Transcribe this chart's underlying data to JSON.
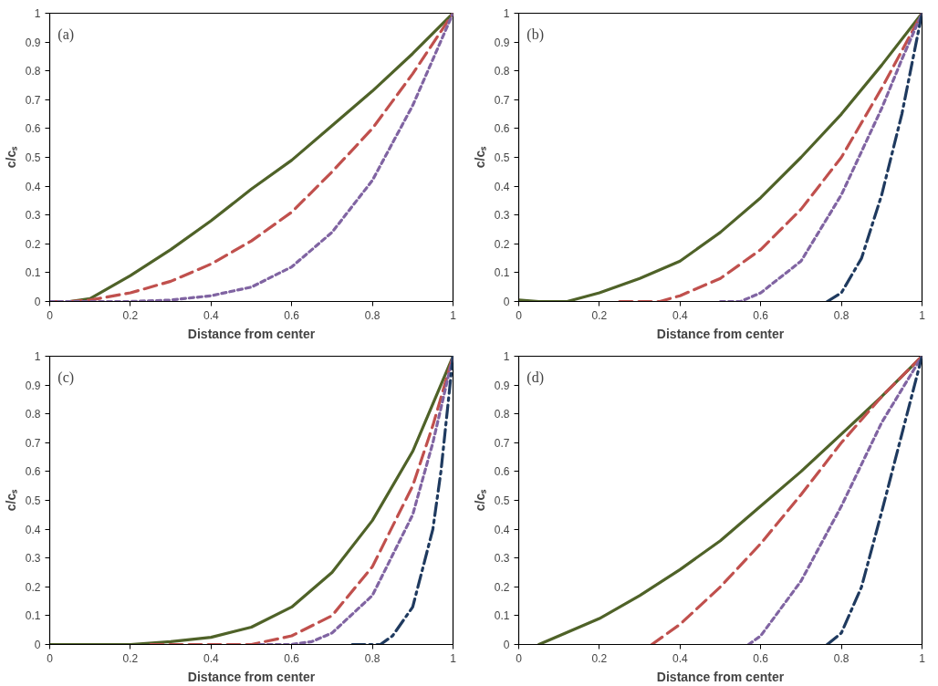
{
  "chart_data": [
    {
      "type": "line",
      "xlabel": "Distance from center",
      "ylabel": "c/cₛ",
      "annotations": [
        "(a)"
      ],
      "xlim": [
        0,
        1
      ],
      "ylim": [
        0,
        1
      ],
      "xticks": [
        0,
        0.2,
        0.4,
        0.6,
        0.8,
        1
      ],
      "yticks": [
        0,
        0.1,
        0.2,
        0.3,
        0.4,
        0.5,
        0.6,
        0.7,
        0.8,
        0.9,
        1
      ],
      "grid": false,
      "series": [
        {
          "color": "#4f6228",
          "line_style": "solid",
          "x": [
            0.05,
            0.1,
            0.2,
            0.3,
            0.4,
            0.5,
            0.6,
            0.7,
            0.8,
            0.9,
            1
          ],
          "values": [
            0,
            0.01,
            0.09,
            0.18,
            0.28,
            0.39,
            0.49,
            0.61,
            0.73,
            0.86,
            1
          ]
        },
        {
          "color": "#c0504d",
          "line_style": "dashed",
          "x": [
            0,
            0.05,
            0.1,
            0.2,
            0.3,
            0.4,
            0.5,
            0.6,
            0.7,
            0.8,
            0.9,
            1
          ],
          "values": [
            0,
            0,
            0.005,
            0.03,
            0.07,
            0.13,
            0.21,
            0.31,
            0.45,
            0.6,
            0.79,
            1
          ]
        },
        {
          "color": "#8064a2",
          "line_style": "dotted",
          "x": [
            0,
            0.1,
            0.2,
            0.3,
            0.4,
            0.5,
            0.6,
            0.7,
            0.8,
            0.9,
            0.95,
            1
          ],
          "values": [
            0,
            0,
            0,
            0.005,
            0.02,
            0.05,
            0.12,
            0.24,
            0.42,
            0.68,
            0.84,
            1
          ]
        }
      ]
    },
    {
      "type": "line",
      "xlabel": "Distance from center",
      "ylabel": "c/cₛ",
      "annotations": [
        "(b)"
      ],
      "xlim": [
        0,
        1
      ],
      "ylim": [
        0,
        1
      ],
      "xticks": [
        0,
        0.2,
        0.4,
        0.6,
        0.8,
        1
      ],
      "yticks": [
        0,
        0.1,
        0.2,
        0.3,
        0.4,
        0.5,
        0.6,
        0.7,
        0.8,
        0.9,
        1
      ],
      "grid": false,
      "series": [
        {
          "color": "#4f6228",
          "line_style": "solid",
          "x": [
            0,
            0.05,
            0.12,
            0.2,
            0.3,
            0.4,
            0.5,
            0.6,
            0.7,
            0.8,
            0.9,
            1
          ],
          "values": [
            0.005,
            0,
            0,
            0.03,
            0.08,
            0.14,
            0.24,
            0.36,
            0.5,
            0.65,
            0.82,
            1
          ]
        },
        {
          "color": "#c0504d",
          "line_style": "dashed",
          "x": [
            0.25,
            0.35,
            0.4,
            0.5,
            0.6,
            0.7,
            0.8,
            0.9,
            1
          ],
          "values": [
            0,
            0,
            0.02,
            0.08,
            0.18,
            0.32,
            0.5,
            0.74,
            1
          ]
        },
        {
          "color": "#8064a2",
          "line_style": "dotted",
          "x": [
            0.5,
            0.55,
            0.6,
            0.7,
            0.8,
            0.9,
            0.95,
            1
          ],
          "values": [
            0,
            0,
            0.03,
            0.14,
            0.37,
            0.67,
            0.84,
            1
          ]
        },
        {
          "color": "#1f3a5f",
          "line_style": "dashdot",
          "x": [
            0.765,
            0.8,
            0.85,
            0.9,
            0.95,
            1
          ],
          "values": [
            0,
            0.03,
            0.15,
            0.37,
            0.65,
            1
          ]
        }
      ]
    },
    {
      "type": "line",
      "xlabel": "Distance from center",
      "ylabel": "c/cₛ",
      "annotations": [
        "(c)"
      ],
      "xlim": [
        0,
        1
      ],
      "ylim": [
        0,
        1
      ],
      "xticks": [
        0,
        0.2,
        0.4,
        0.6,
        0.8,
        1
      ],
      "yticks": [
        0,
        0.1,
        0.2,
        0.3,
        0.4,
        0.5,
        0.6,
        0.7,
        0.8,
        0.9,
        1
      ],
      "grid": false,
      "series": [
        {
          "color": "#4f6228",
          "line_style": "solid",
          "x": [
            0,
            0.1,
            0.2,
            0.3,
            0.4,
            0.5,
            0.6,
            0.7,
            0.8,
            0.9,
            1
          ],
          "values": [
            0,
            0,
            0,
            0.01,
            0.025,
            0.06,
            0.13,
            0.25,
            0.43,
            0.67,
            1
          ]
        },
        {
          "color": "#c0504d",
          "line_style": "dashed",
          "x": [
            0.25,
            0.4,
            0.5,
            0.6,
            0.7,
            0.8,
            0.9,
            0.95,
            1
          ],
          "values": [
            0,
            0,
            0,
            0.03,
            0.1,
            0.27,
            0.55,
            0.76,
            1
          ]
        },
        {
          "color": "#8064a2",
          "line_style": "dotted",
          "x": [
            0.52,
            0.6,
            0.65,
            0.7,
            0.8,
            0.9,
            0.95,
            1
          ],
          "values": [
            0,
            0,
            0.01,
            0.04,
            0.17,
            0.45,
            0.7,
            1
          ]
        },
        {
          "color": "#1f3a5f",
          "line_style": "dashdot",
          "x": [
            0.75,
            0.82,
            0.85,
            0.9,
            0.95,
            0.97,
            1
          ],
          "values": [
            0,
            0,
            0.03,
            0.13,
            0.4,
            0.6,
            1
          ]
        }
      ]
    },
    {
      "type": "line",
      "xlabel": "Distance from center",
      "ylabel": "c/cₛ",
      "annotations": [
        "(d)"
      ],
      "xlim": [
        0,
        1
      ],
      "ylim": [
        0,
        1
      ],
      "xticks": [
        0,
        0.2,
        0.4,
        0.6,
        0.8,
        1
      ],
      "yticks": [
        0,
        0.1,
        0.2,
        0.3,
        0.4,
        0.5,
        0.6,
        0.7,
        0.8,
        0.9,
        1
      ],
      "grid": false,
      "series": [
        {
          "color": "#4f6228",
          "line_style": "solid",
          "x": [
            0.05,
            0.1,
            0.2,
            0.3,
            0.4,
            0.5,
            0.6,
            0.7,
            0.8,
            0.9,
            1
          ],
          "values": [
            0,
            0.03,
            0.09,
            0.17,
            0.26,
            0.36,
            0.48,
            0.6,
            0.73,
            0.86,
            1
          ]
        },
        {
          "color": "#c0504d",
          "line_style": "dashed",
          "x": [
            0.33,
            0.4,
            0.5,
            0.6,
            0.7,
            0.8,
            0.9,
            1
          ],
          "values": [
            0,
            0.07,
            0.2,
            0.35,
            0.52,
            0.7,
            0.86,
            1
          ]
        },
        {
          "color": "#8064a2",
          "line_style": "dotted",
          "x": [
            0.57,
            0.6,
            0.7,
            0.8,
            0.9,
            1
          ],
          "values": [
            0,
            0.03,
            0.22,
            0.48,
            0.77,
            1
          ]
        },
        {
          "color": "#1f3a5f",
          "line_style": "dashdot",
          "x": [
            0.765,
            0.8,
            0.85,
            0.9,
            0.95,
            1
          ],
          "values": [
            0,
            0.04,
            0.2,
            0.46,
            0.73,
            1
          ]
        }
      ]
    }
  ]
}
